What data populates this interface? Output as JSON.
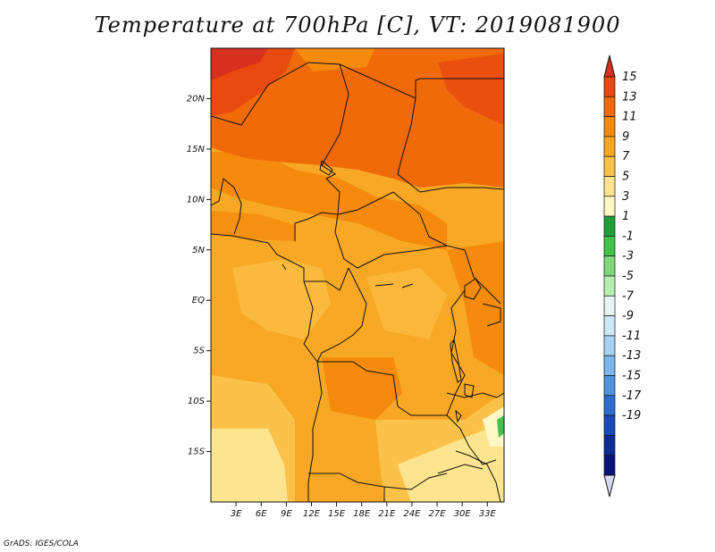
{
  "title": "Temperature at 700hPa [C], VT: 2019081900",
  "credit": "GrADS: IGES/COLA",
  "map": {
    "projection": "latlon",
    "lon_range": [
      0,
      35
    ],
    "lat_range": [
      -20,
      25
    ],
    "lon_ticks": [
      {
        "value": 3,
        "label": "3E"
      },
      {
        "value": 6,
        "label": "6E"
      },
      {
        "value": 9,
        "label": "9E"
      },
      {
        "value": 12,
        "label": "12E"
      },
      {
        "value": 15,
        "label": "15E"
      },
      {
        "value": 18,
        "label": "18E"
      },
      {
        "value": 21,
        "label": "21E"
      },
      {
        "value": 24,
        "label": "24E"
      },
      {
        "value": 27,
        "label": "27E"
      },
      {
        "value": 30,
        "label": "30E"
      },
      {
        "value": 33,
        "label": "33E"
      }
    ],
    "lat_ticks": [
      {
        "value": 20,
        "label": "20N"
      },
      {
        "value": 15,
        "label": "15N"
      },
      {
        "value": 10,
        "label": "10N"
      },
      {
        "value": 5,
        "label": "5N"
      },
      {
        "value": 0,
        "label": "EQ"
      },
      {
        "value": -5,
        "label": "5S"
      },
      {
        "value": -10,
        "label": "10S"
      },
      {
        "value": -15,
        "label": "15S"
      }
    ],
    "field": "temperature_700hPa_C"
  },
  "colorbar": {
    "labels": [
      "15",
      "13",
      "11",
      "9",
      "7",
      "5",
      "3",
      "1",
      "-1",
      "-3",
      "-5",
      "-7",
      "-9",
      "-11",
      "-13",
      "-15",
      "-17",
      "-19"
    ],
    "colors": [
      "#d7301f",
      "#e8490f",
      "#f06a0a",
      "#f58a0c",
      "#f8a824",
      "#fbc24a",
      "#fde48e",
      "#fef6c4",
      "#1f9e3a",
      "#41c34a",
      "#7fd97a",
      "#b7edb0",
      "#e6f7f3",
      "#cde8f8",
      "#a8d2f2",
      "#7cb6ea",
      "#4f94de",
      "#2c6ecf",
      "#1a49b8",
      "#0d2c96",
      "#07147a",
      "#d8d8f5"
    ]
  }
}
